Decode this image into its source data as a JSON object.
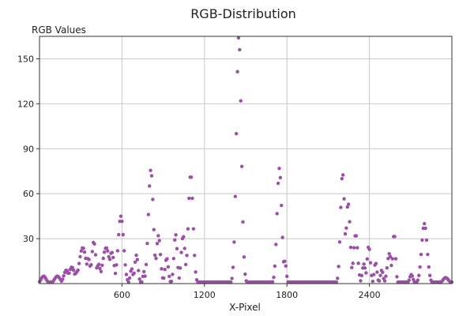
{
  "chart_data": {
    "type": "scatter",
    "title": "RGB-Distribution",
    "xlabel": "X-Pixel",
    "ylabel": "RGB Values",
    "xlim": [
      0,
      3000
    ],
    "ylim": [
      0,
      165
    ],
    "x_ticks": [
      600,
      1200,
      1800,
      2400
    ],
    "y_ticks": [
      30,
      60,
      90,
      120,
      150
    ],
    "grid": true,
    "legend": "none",
    "marker_color": "#9b4fa6",
    "background": "#ffffff",
    "gridline_color": "#c8c8c8",
    "baseline": 1,
    "peaks": [
      {
        "x": 30,
        "y": 5,
        "w": 18
      },
      {
        "x": 130,
        "y": 5,
        "w": 20
      },
      {
        "x": 195,
        "y": 9,
        "w": 18
      },
      {
        "x": 235,
        "y": 11,
        "w": 20
      },
      {
        "x": 275,
        "y": 8,
        "w": 20
      },
      {
        "x": 315,
        "y": 24,
        "w": 25
      },
      {
        "x": 355,
        "y": 17,
        "w": 15
      },
      {
        "x": 395,
        "y": 28,
        "w": 15
      },
      {
        "x": 430,
        "y": 13,
        "w": 14
      },
      {
        "x": 485,
        "y": 24,
        "w": 25
      },
      {
        "x": 525,
        "y": 21,
        "w": 18
      },
      {
        "x": 592,
        "y": 45,
        "w": 20
      },
      {
        "x": 670,
        "y": 10,
        "w": 10
      },
      {
        "x": 705,
        "y": 19,
        "w": 12
      },
      {
        "x": 760,
        "y": 8,
        "w": 8
      },
      {
        "x": 810,
        "y": 76,
        "w": 18
      },
      {
        "x": 865,
        "y": 32,
        "w": 15
      },
      {
        "x": 925,
        "y": 17,
        "w": 12
      },
      {
        "x": 990,
        "y": 33,
        "w": 12
      },
      {
        "x": 1045,
        "y": 32,
        "w": 14
      },
      {
        "x": 1100,
        "y": 73,
        "w": 17
      },
      {
        "x": 1450,
        "y": 165,
        "w": 18
      },
      {
        "x": 1745,
        "y": 77,
        "w": 17
      },
      {
        "x": 1785,
        "y": 15,
        "w": 10
      },
      {
        "x": 2205,
        "y": 74,
        "w": 15
      },
      {
        "x": 2245,
        "y": 54,
        "w": 15
      },
      {
        "x": 2300,
        "y": 33,
        "w": 15
      },
      {
        "x": 2360,
        "y": 13,
        "w": 12
      },
      {
        "x": 2395,
        "y": 25,
        "w": 12
      },
      {
        "x": 2445,
        "y": 14,
        "w": 10
      },
      {
        "x": 2490,
        "y": 9,
        "w": 10
      },
      {
        "x": 2545,
        "y": 20,
        "w": 15
      },
      {
        "x": 2580,
        "y": 34,
        "w": 10
      },
      {
        "x": 2705,
        "y": 6,
        "w": 12
      },
      {
        "x": 2800,
        "y": 40,
        "w": 20
      },
      {
        "x": 2955,
        "y": 4,
        "w": 20
      }
    ],
    "sample_step": 8
  }
}
